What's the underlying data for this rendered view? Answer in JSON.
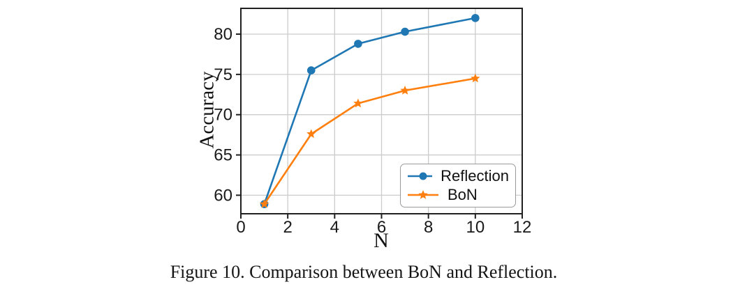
{
  "page": {
    "background": "#ffffff"
  },
  "caption": "Figure 10. Comparison between BoN and Reflection.",
  "colors": {
    "grid": "#cccccc",
    "spine": "#1f1f1f",
    "tick_text": "#1a1a1a",
    "legend_border": "#9a9a9a",
    "reflection_blue": "#1f77b4",
    "bon_orange": "#ff7f0e"
  },
  "chart_data": {
    "type": "line",
    "title": "",
    "xlabel": "N",
    "ylabel": "Accuracy",
    "x_ticks": [
      0,
      2,
      4,
      6,
      8,
      10,
      12
    ],
    "y_ticks": [
      60,
      65,
      70,
      75,
      80
    ],
    "xlim": [
      0,
      12
    ],
    "ylim": [
      57.7,
      83.2
    ],
    "grid": true,
    "legend_position": "lower right",
    "series": [
      {
        "name": "Reflection",
        "color": "#1f77b4",
        "marker": "circle",
        "x": [
          1,
          3,
          5,
          7,
          10
        ],
        "values": [
          58.9,
          75.5,
          78.8,
          80.3,
          82.0
        ]
      },
      {
        "name": "BoN",
        "color": "#ff7f0e",
        "marker": "star",
        "x": [
          1,
          3,
          5,
          7,
          10
        ],
        "values": [
          58.9,
          67.6,
          71.4,
          73.0,
          74.5
        ]
      }
    ]
  }
}
